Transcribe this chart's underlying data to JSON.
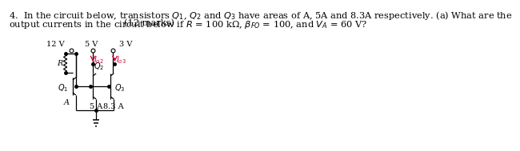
{
  "text_line1": "4.  In the circuit below, transistors $Q_1$, $Q_2$ and $Q_3$ have areas of A, 5A and 8.3A respectively. (a) What are the",
  "text_line2": "output currents in the circuit below if $R$ = 100 kΩ, $\\beta_{FO}$ = 100, and $V_A$ = 60 V?",
  "text_marks": "(12 marks)",
  "voltage_12V": "12 V",
  "voltage_5V": "5 V",
  "voltage_3V": "3 V",
  "label_R": "R",
  "label_Ic2": "$I_{o2}$",
  "label_Ic3": "$I_{o3}$",
  "label_Q1": "$Q_1$",
  "label_Q2": "$Q_2$",
  "label_Q3": "$Q_3$",
  "label_A": "A",
  "label_5A": "5 A",
  "label_83A": "8.3 A",
  "line_color": "#000000",
  "arrow_color": "#cc0033",
  "bg_color": "#ffffff",
  "text_color": "#000000",
  "font_size_text": 8.2,
  "font_size_circuit": 7.0
}
